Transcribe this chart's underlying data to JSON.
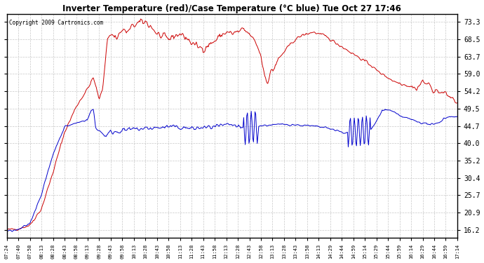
{
  "title": "Inverter Temperature (red)/Case Temperature (°C blue) Tue Oct 27 17:46",
  "copyright": "Copyright 2009 Cartronics.com",
  "yticks": [
    16.2,
    20.9,
    25.7,
    30.4,
    35.2,
    40.0,
    44.7,
    49.5,
    54.2,
    59.0,
    63.7,
    68.5,
    73.3
  ],
  "ymin": 14.0,
  "ymax": 75.5,
  "background_color": "#ffffff",
  "grid_color": "#c8c8c8",
  "red_color": "#cc0000",
  "blue_color": "#0000cc",
  "xtick_labels": [
    "07:24",
    "07:40",
    "07:58",
    "08:13",
    "08:28",
    "08:43",
    "08:58",
    "09:13",
    "09:28",
    "09:43",
    "09:58",
    "10:13",
    "10:28",
    "10:43",
    "10:58",
    "11:13",
    "11:28",
    "11:43",
    "11:58",
    "12:13",
    "12:28",
    "12:43",
    "12:58",
    "13:13",
    "13:28",
    "13:43",
    "13:58",
    "14:13",
    "14:29",
    "14:44",
    "14:59",
    "15:14",
    "15:29",
    "15:44",
    "15:59",
    "16:14",
    "16:29",
    "16:44",
    "16:59",
    "17:14"
  ],
  "figsize": [
    6.9,
    3.75
  ],
  "dpi": 100
}
